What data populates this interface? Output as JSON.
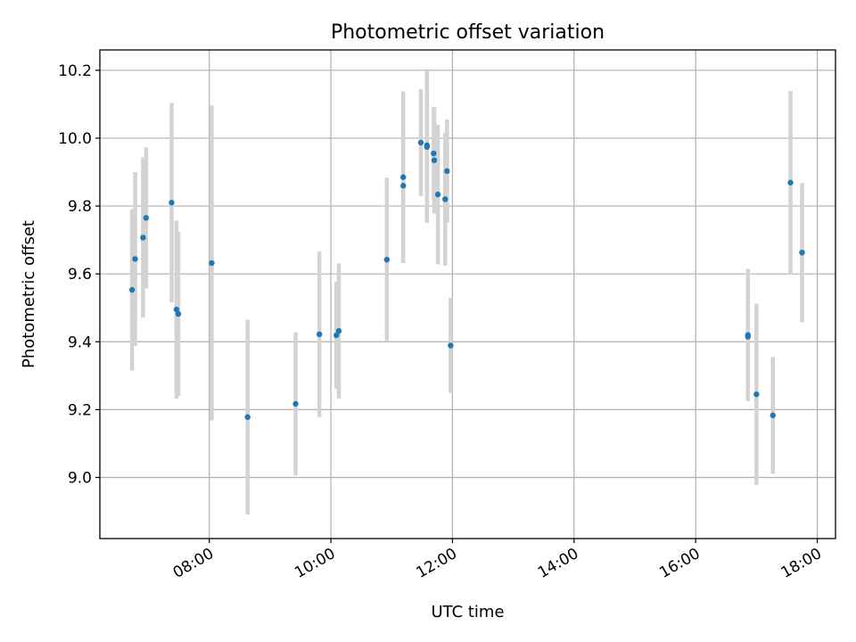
{
  "chart_data": {
    "type": "scatter",
    "title": "Photometric offset variation",
    "xlabel": "UTC time",
    "ylabel": "Photometric offset",
    "x_unit": "hour of day (UTC)",
    "xlim": [
      6.2,
      18.3
    ],
    "ylim": [
      8.82,
      10.26
    ],
    "x_ticks": [
      {
        "value": 8,
        "label": "08:00"
      },
      {
        "value": 10,
        "label": "10:00"
      },
      {
        "value": 12,
        "label": "12:00"
      },
      {
        "value": 14,
        "label": "14:00"
      },
      {
        "value": 16,
        "label": "16:00"
      },
      {
        "value": 18,
        "label": "18:00"
      }
    ],
    "y_ticks": [
      {
        "value": 9.0,
        "label": "9.0"
      },
      {
        "value": 9.2,
        "label": "9.2"
      },
      {
        "value": 9.4,
        "label": "9.4"
      },
      {
        "value": 9.6,
        "label": "9.6"
      },
      {
        "value": 9.8,
        "label": "9.8"
      },
      {
        "value": 10.0,
        "label": "10.0"
      },
      {
        "value": 10.2,
        "label": "10.2"
      }
    ],
    "grid": true,
    "marker_color": "#1f77b4",
    "errorbar_color": "#d3d3d3",
    "points": [
      {
        "x": 6.73,
        "y": 9.553,
        "err": 0.238
      },
      {
        "x": 6.78,
        "y": 9.644,
        "err": 0.256
      },
      {
        "x": 6.91,
        "y": 9.707,
        "err": 0.236
      },
      {
        "x": 6.96,
        "y": 9.765,
        "err": 0.208
      },
      {
        "x": 7.38,
        "y": 9.81,
        "err": 0.294
      },
      {
        "x": 7.46,
        "y": 9.495,
        "err": 0.262
      },
      {
        "x": 7.49,
        "y": 9.482,
        "err": 0.242
      },
      {
        "x": 8.04,
        "y": 9.632,
        "err": 0.464
      },
      {
        "x": 8.63,
        "y": 9.178,
        "err": 0.287
      },
      {
        "x": 9.42,
        "y": 9.217,
        "err": 0.211
      },
      {
        "x": 9.81,
        "y": 9.422,
        "err": 0.244
      },
      {
        "x": 10.09,
        "y": 9.419,
        "err": 0.158
      },
      {
        "x": 10.13,
        "y": 9.432,
        "err": 0.199
      },
      {
        "x": 10.92,
        "y": 9.642,
        "err": 0.242
      },
      {
        "x": 11.19,
        "y": 9.86,
        "err": 0.228
      },
      {
        "x": 11.19,
        "y": 9.885,
        "err": 0.253
      },
      {
        "x": 11.48,
        "y": 9.987,
        "err": 0.157
      },
      {
        "x": 11.58,
        "y": 9.979,
        "err": 0.218
      },
      {
        "x": 11.58,
        "y": 9.974,
        "err": 0.224
      },
      {
        "x": 11.69,
        "y": 9.955,
        "err": 0.136
      },
      {
        "x": 11.7,
        "y": 9.935,
        "err": 0.157
      },
      {
        "x": 11.76,
        "y": 9.834,
        "err": 0.206
      },
      {
        "x": 11.88,
        "y": 9.82,
        "err": 0.196
      },
      {
        "x": 11.91,
        "y": 9.903,
        "err": 0.152
      },
      {
        "x": 11.97,
        "y": 9.389,
        "err": 0.14
      },
      {
        "x": 16.86,
        "y": 9.42,
        "err": 0.195
      },
      {
        "x": 16.86,
        "y": 9.415,
        "err": 0.17
      },
      {
        "x": 17.0,
        "y": 9.245,
        "err": 0.267
      },
      {
        "x": 17.27,
        "y": 9.183,
        "err": 0.172
      },
      {
        "x": 17.56,
        "y": 9.869,
        "err": 0.27
      },
      {
        "x": 17.75,
        "y": 9.663,
        "err": 0.205
      }
    ]
  }
}
